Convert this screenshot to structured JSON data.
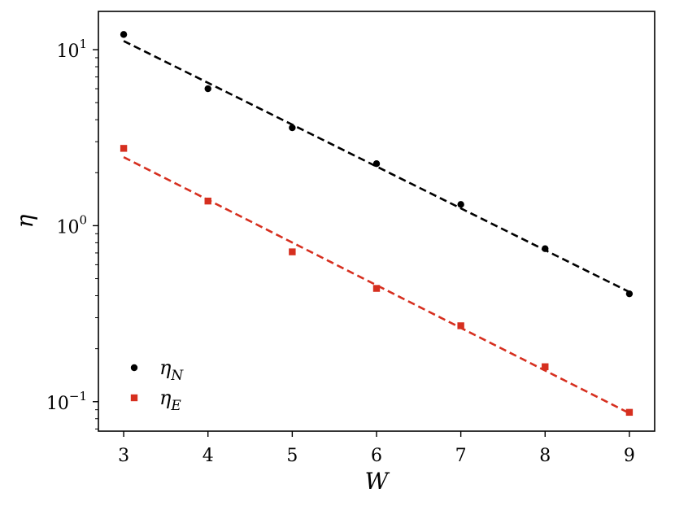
{
  "chart_data": {
    "type": "scatter",
    "xlabel": "W",
    "ylabel": "η",
    "xscale": "linear",
    "yscale": "log",
    "xlim": [
      2.7,
      9.3
    ],
    "ylim": [
      0.068,
      16.5
    ],
    "xticks": [
      3,
      4,
      5,
      6,
      7,
      8,
      9
    ],
    "yticks": [
      {
        "value": 0.1,
        "base": "10",
        "exp": "−1"
      },
      {
        "value": 1,
        "base": "10",
        "exp": "0"
      },
      {
        "value": 10,
        "base": "10",
        "exp": "1"
      }
    ],
    "grid": false,
    "legend_position": "lower-left",
    "series": [
      {
        "name": "η",
        "subscript": "N",
        "marker": "circle",
        "color": "#000000",
        "x": [
          3,
          4,
          5,
          6,
          7,
          8,
          9
        ],
        "y": [
          12.2,
          6.0,
          3.6,
          2.25,
          1.32,
          0.74,
          0.41
        ],
        "fit": {
          "x": [
            3,
            9
          ],
          "y": [
            11.2,
            0.42
          ]
        }
      },
      {
        "name": "η",
        "subscript": "E",
        "marker": "square",
        "color": "#d62f1f",
        "x": [
          3,
          4,
          5,
          6,
          7,
          8,
          9
        ],
        "y": [
          2.75,
          1.38,
          0.71,
          0.44,
          0.27,
          0.158,
          0.087
        ],
        "fit": {
          "x": [
            3,
            9
          ],
          "y": [
            2.45,
            0.086
          ]
        }
      }
    ]
  }
}
